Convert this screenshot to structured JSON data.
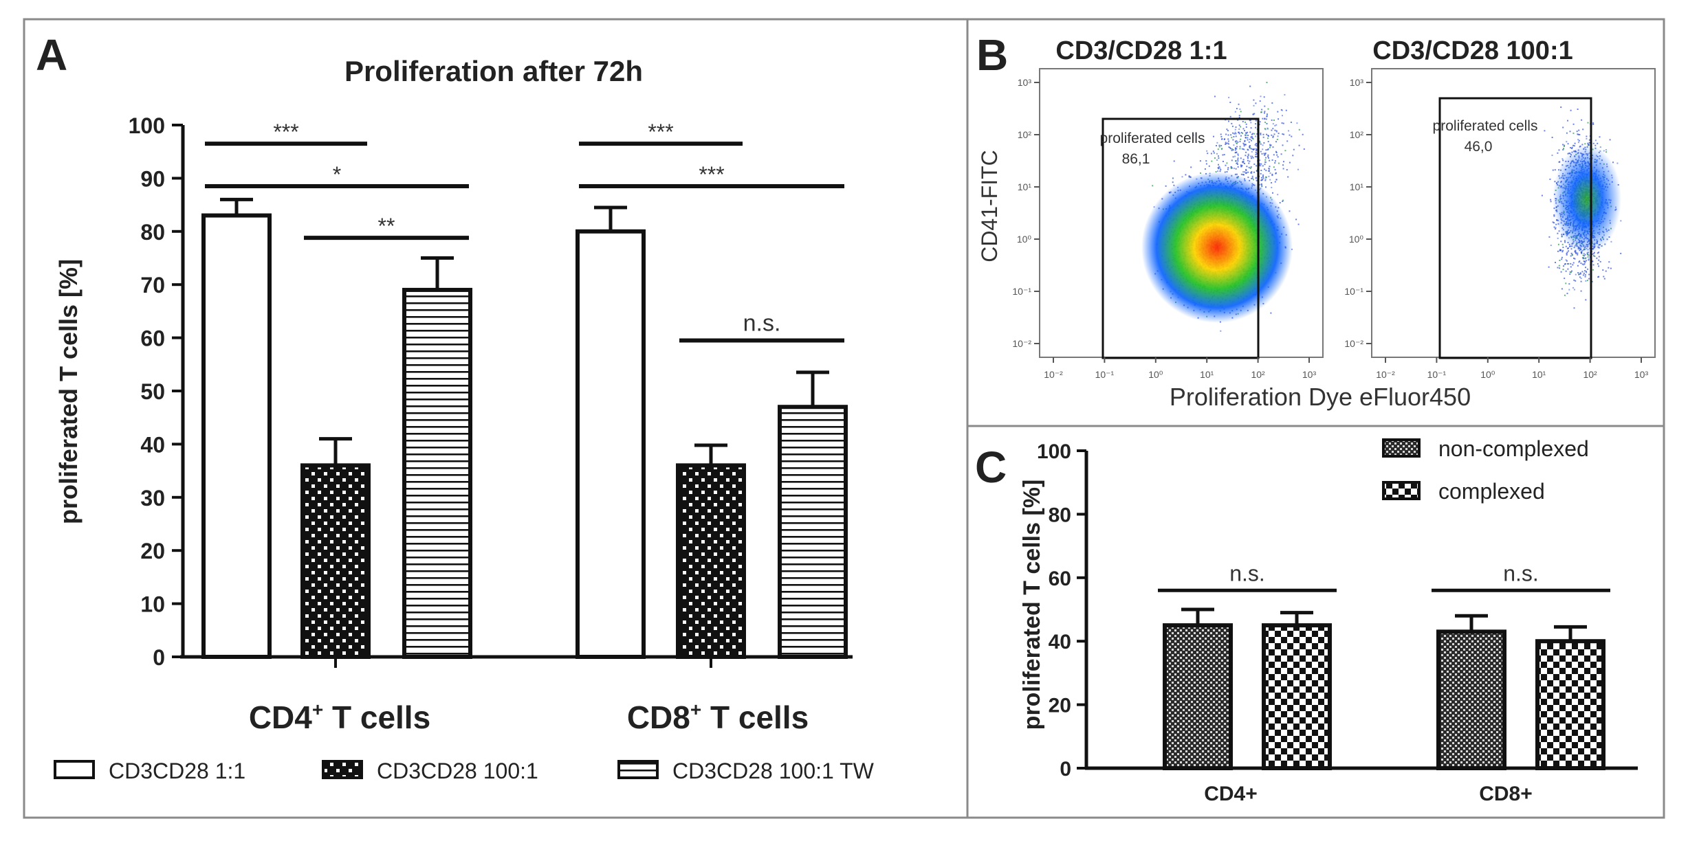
{
  "panels": {
    "A": {
      "letter": "A"
    },
    "B": {
      "letter": "B"
    },
    "C": {
      "letter": "C"
    }
  },
  "chart_data": [
    {
      "panel": "A",
      "type": "bar",
      "title": "Proliferation after 72h",
      "ylabel": "proliferated T cells [%]",
      "xlabel": "",
      "ylim": [
        0,
        100
      ],
      "yticks": [
        0,
        10,
        20,
        30,
        40,
        50,
        60,
        70,
        80,
        90,
        100
      ],
      "categories": [
        "CD4",
        "CD8"
      ],
      "category_labels": [
        {
          "main": "CD4",
          "sup": "+",
          "rest": " T cells"
        },
        {
          "main": "CD8",
          "sup": "+",
          "rest": " T cells"
        }
      ],
      "series": [
        {
          "name": "CD3CD28 1:1",
          "pattern": "white",
          "values": [
            83,
            80
          ],
          "errors": [
            3,
            4.5
          ]
        },
        {
          "name": "CD3CD28 100:1",
          "pattern": "dots",
          "values": [
            36,
            36
          ],
          "errors": [
            5,
            3.8
          ]
        },
        {
          "name": "CD3CD28 100:1 TW",
          "pattern": "hlines",
          "values": [
            69,
            47
          ],
          "errors": [
            6,
            6.5
          ]
        }
      ],
      "significance": [
        {
          "group": 0,
          "from": 0,
          "to": 1,
          "y": 96.5,
          "label": "***"
        },
        {
          "group": 0,
          "from": 0,
          "to": 2,
          "y": 88.5,
          "label": "*"
        },
        {
          "group": 0,
          "from": 1,
          "to": 2,
          "y": 78.8,
          "label": "**"
        },
        {
          "group": 1,
          "from": 0,
          "to": 1,
          "y": 96.5,
          "label": "***"
        },
        {
          "group": 1,
          "from": 0,
          "to": 2,
          "y": 88.5,
          "label": "***"
        },
        {
          "group": 1,
          "from": 1,
          "to": 2,
          "y": 59.5,
          "label": "n.s."
        }
      ],
      "legend_position": "bottom"
    },
    {
      "panel": "B",
      "type": "scatter",
      "xlabel": "Proliferation Dye eFluor450",
      "ylabel": "CD41-FITC",
      "log_scale": true,
      "axis_tick_labels": [
        "10⁻²",
        "10⁻¹",
        "10⁰",
        "10¹",
        "10²",
        "10³"
      ],
      "plots": [
        {
          "title": "CD3/CD28  1:1",
          "gate_label": "proliferated cells",
          "gate_value": "86,1"
        },
        {
          "title": "CD3/CD28  100:1",
          "gate_label": "proliferated cells",
          "gate_value": "46,0"
        }
      ]
    },
    {
      "panel": "C",
      "type": "bar",
      "ylabel": "proliferated T cells [%]",
      "xlabel": "",
      "ylim": [
        0,
        100
      ],
      "yticks": [
        0,
        20,
        40,
        60,
        80,
        100
      ],
      "categories": [
        "CD4+",
        "CD8+"
      ],
      "series": [
        {
          "name": "non-complexed",
          "pattern": "fine-check",
          "values": [
            45,
            43
          ],
          "errors": [
            5,
            5
          ]
        },
        {
          "name": "complexed",
          "pattern": "coarse-check",
          "values": [
            45,
            40
          ],
          "errors": [
            4,
            4.5
          ]
        }
      ],
      "significance": [
        {
          "group": 0,
          "y": 56,
          "label": "n.s."
        },
        {
          "group": 1,
          "y": 56,
          "label": "n.s."
        }
      ],
      "legend_position": "top-right"
    }
  ]
}
